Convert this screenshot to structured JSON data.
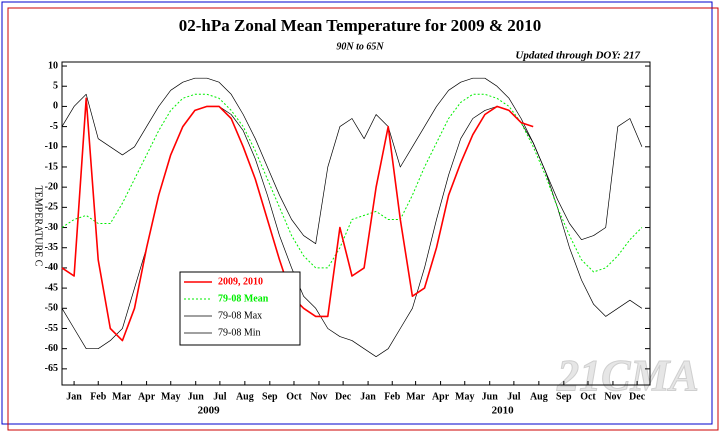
{
  "chart_data": {
    "type": "line",
    "title": "02-hPa Zonal Mean Temperature for 2009 & 2010",
    "subtitle": "90N to 65N",
    "annotation": "Updated through DOY: 217",
    "y_label": "TEMPERATURE C",
    "watermark": "21CMA",
    "x": [
      0,
      15,
      30,
      45,
      60,
      75,
      90,
      105,
      120,
      135,
      150,
      165,
      180,
      195,
      210,
      225,
      240,
      255,
      270,
      285,
      300,
      315,
      330,
      345,
      360,
      375,
      390,
      405,
      420,
      435,
      450,
      465,
      480,
      495,
      510,
      525,
      540,
      555,
      570,
      585,
      600,
      615,
      630,
      645,
      660,
      675,
      690,
      705,
      720
    ],
    "xlim": [
      0,
      730
    ],
    "xticks": [
      {
        "value": 15,
        "label": "Jan"
      },
      {
        "value": 45,
        "label": "Feb"
      },
      {
        "value": 74,
        "label": "Mar"
      },
      {
        "value": 105,
        "label": "Apr"
      },
      {
        "value": 135,
        "label": "May"
      },
      {
        "value": 166,
        "label": "Jun"
      },
      {
        "value": 196,
        "label": "Jul"
      },
      {
        "value": 227,
        "label": "Aug"
      },
      {
        "value": 258,
        "label": "Sep"
      },
      {
        "value": 288,
        "label": "Oct"
      },
      {
        "value": 319,
        "label": "Nov"
      },
      {
        "value": 349,
        "label": "Dec"
      },
      {
        "value": 380,
        "label": "Jan"
      },
      {
        "value": 410,
        "label": "Feb"
      },
      {
        "value": 439,
        "label": "Mar"
      },
      {
        "value": 470,
        "label": "Apr"
      },
      {
        "value": 500,
        "label": "May"
      },
      {
        "value": 531,
        "label": "Jun"
      },
      {
        "value": 561,
        "label": "Jul"
      },
      {
        "value": 592,
        "label": "Aug"
      },
      {
        "value": 623,
        "label": "Sep"
      },
      {
        "value": 653,
        "label": "Oct"
      },
      {
        "value": 684,
        "label": "Nov"
      },
      {
        "value": 714,
        "label": "Dec"
      }
    ],
    "year_labels": [
      {
        "value": 182,
        "label": "2009"
      },
      {
        "value": 547,
        "label": "2010"
      }
    ],
    "ylim": [
      -69,
      11
    ],
    "yticks": [
      -65,
      -60,
      -55,
      -50,
      -45,
      -40,
      -35,
      -30,
      -25,
      -20,
      -15,
      -10,
      -5,
      0,
      5,
      10
    ],
    "legend": "lower left",
    "series": [
      {
        "name": "2009, 2010",
        "color": "#ff0000",
        "width": 1.6,
        "dash": "none",
        "values": [
          -40,
          -42,
          2,
          -38,
          -55,
          -58,
          -50,
          -35,
          -22,
          -12,
          -5,
          -1,
          0,
          0,
          -3,
          -10,
          -18,
          -28,
          -38,
          -47,
          -50,
          -52,
          -52,
          -30,
          -42,
          -40,
          -20,
          -5,
          -28,
          -47,
          -45,
          -35,
          -22,
          -14,
          -7,
          -2,
          0,
          -1,
          -4,
          -5,
          null,
          null,
          null,
          null,
          null,
          null,
          null,
          null,
          null
        ]
      },
      {
        "name": "79-08 Mean",
        "color": "#00ee00",
        "width": 1,
        "dash": "2,2",
        "values": [
          -30,
          -28,
          -27,
          -29,
          -29,
          -24,
          -18,
          -12,
          -6,
          -1,
          2,
          3,
          3,
          2,
          -1,
          -5,
          -11,
          -18,
          -25,
          -32,
          -37,
          -40,
          -40,
          -35,
          -28,
          -27,
          -26,
          -28,
          -28,
          -22,
          -15,
          -9,
          -3,
          1,
          3,
          3,
          2,
          0,
          -4,
          -10,
          -17,
          -25,
          -32,
          -38,
          -41,
          -40,
          -37,
          -33,
          -30
        ]
      },
      {
        "name": "79-08 Max",
        "color": "#000000",
        "width": 0.7,
        "dash": "none",
        "values": [
          -5,
          0,
          3,
          -8,
          -10,
          -12,
          -10,
          -5,
          0,
          4,
          6,
          7,
          7,
          6,
          3,
          -2,
          -8,
          -15,
          -22,
          -28,
          -32,
          -34,
          -15,
          -5,
          -3,
          -8,
          -2,
          -5,
          -15,
          -10,
          -5,
          0,
          4,
          6,
          7,
          7,
          5,
          2,
          -3,
          -9,
          -16,
          -23,
          -29,
          -33,
          -32,
          -30,
          -5,
          -3,
          -10
        ]
      },
      {
        "name": "79-08 Min",
        "color": "#000000",
        "width": 0.7,
        "dash": "none",
        "values": [
          -50,
          -55,
          -60,
          -60,
          -58,
          -55,
          -45,
          -35,
          -22,
          -12,
          -5,
          -1,
          0,
          0,
          -2,
          -6,
          -13,
          -22,
          -32,
          -40,
          -47,
          -50,
          -55,
          -57,
          -58,
          -60,
          -62,
          -60,
          -55,
          -50,
          -40,
          -28,
          -17,
          -8,
          -3,
          -1,
          0,
          -1,
          -4,
          -9,
          -16,
          -25,
          -35,
          -43,
          -49,
          -52,
          -50,
          -48,
          -50
        ]
      }
    ]
  }
}
